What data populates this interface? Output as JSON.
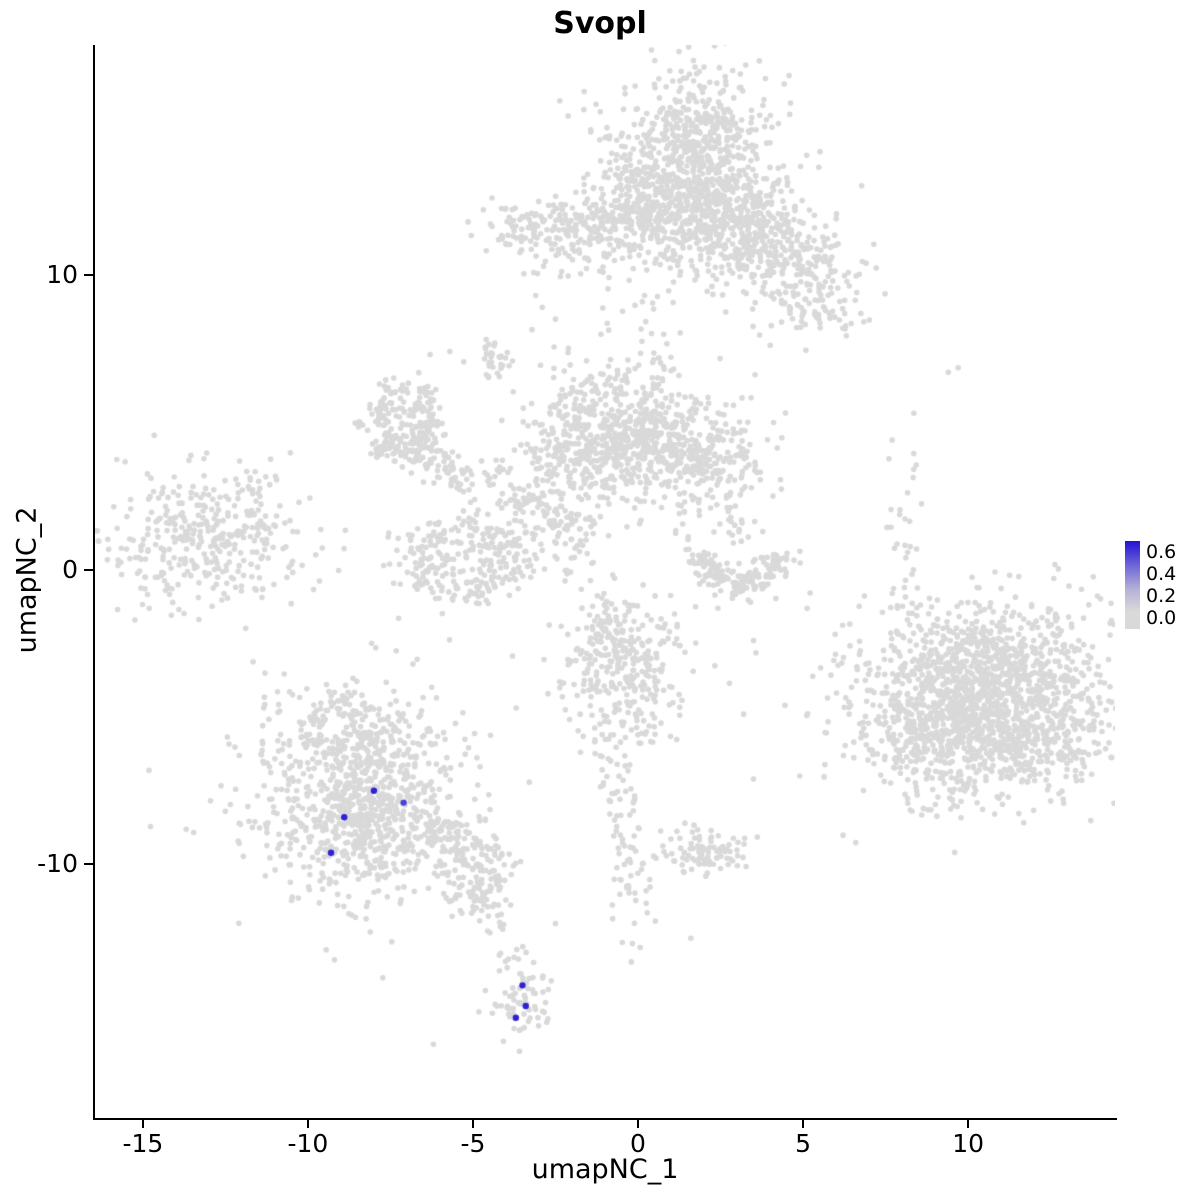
{
  "title": "Svopl",
  "axes": {
    "xlabel": "umapNC_1",
    "ylabel": "umapNC_2",
    "xticks": [
      -15,
      -10,
      -5,
      0,
      5,
      10
    ],
    "yticks": [
      -10,
      0,
      10
    ],
    "xlim": [
      -16.45,
      14.45
    ],
    "ylim": [
      -18.6,
      17.8
    ]
  },
  "legend": {
    "ticks": [
      "0.6",
      "0.4",
      "0.2",
      "0.0"
    ],
    "max_value": 0.65
  },
  "chart_data": {
    "type": "scatter",
    "title": "Svopl",
    "xlabel": "umapNC_1",
    "ylabel": "umapNC_2",
    "background": "#ffffff",
    "point_color_low": "#d9d9d9",
    "point_color_high": "#2312d6",
    "point_radius": 2.8,
    "highlight_radius": 3.2,
    "clusters": [
      {
        "x": 1.5,
        "y": 13.6,
        "sx": 1.25,
        "sy": 1.6,
        "n": 650
      },
      {
        "x": 2.7,
        "y": 12.1,
        "sx": 1.0,
        "sy": 1.0,
        "n": 260
      },
      {
        "x": 0.5,
        "y": 12.4,
        "sx": 0.85,
        "sy": 1.1,
        "n": 220
      },
      {
        "x": 1.9,
        "y": 15.1,
        "sx": 0.8,
        "sy": 0.5,
        "n": 90
      },
      {
        "x": 4.2,
        "y": 11.2,
        "sx": 1.05,
        "sy": 0.95,
        "n": 220
      },
      {
        "x": 5.3,
        "y": 9.5,
        "sx": 0.85,
        "sy": 0.85,
        "n": 150
      },
      {
        "x": -2.2,
        "y": 11.4,
        "sx": 1.3,
        "sy": 0.65,
        "n": 210
      },
      {
        "x": -0.7,
        "y": 11.9,
        "sx": 0.7,
        "sy": 0.5,
        "n": 60
      },
      {
        "x": 0.4,
        "y": 7.4,
        "sx": 0.3,
        "sy": 1.3,
        "n": 26
      },
      {
        "x": -0.9,
        "y": 4.9,
        "sx": 1.25,
        "sy": 1.45,
        "n": 430
      },
      {
        "x": -2.0,
        "y": 3.8,
        "sx": 0.8,
        "sy": 0.8,
        "n": 140
      },
      {
        "x": 1.9,
        "y": 3.9,
        "sx": 1.05,
        "sy": 0.95,
        "n": 290
      },
      {
        "x": 0.6,
        "y": 4.3,
        "sx": 0.8,
        "sy": 0.6,
        "n": 110
      },
      {
        "shape": "ring",
        "x": -7.1,
        "y": 4.9,
        "r": 0.85,
        "jit": 0.3,
        "ax": 1.0,
        "ay": 1.15,
        "n": 230
      },
      {
        "x": -5.8,
        "y": 3.5,
        "sx": 0.95,
        "sy": 0.3,
        "rot": -40,
        "n": 80
      },
      {
        "shape": "ring",
        "x": -5.2,
        "y": 0.4,
        "r": 1.05,
        "jit": 0.38,
        "ax": 1.35,
        "ay": 1.0,
        "n": 280
      },
      {
        "x": -3.2,
        "y": 2.3,
        "sx": 1.0,
        "sy": 0.35,
        "rot": -35,
        "n": 80
      },
      {
        "x": -2.0,
        "y": 1.2,
        "sx": 0.45,
        "sy": 0.8,
        "n": 45
      },
      {
        "x": -4.5,
        "y": 7.2,
        "sx": 0.35,
        "sy": 0.35,
        "n": 30
      },
      {
        "shape": "ring",
        "x": 3.1,
        "y": 0.2,
        "r": 0.95,
        "jit": 0.3,
        "ax": 1.15,
        "ay": 0.75,
        "arc": [
          150,
          390
        ],
        "n": 170
      },
      {
        "x": 2.9,
        "y": 1.5,
        "sx": 0.3,
        "sy": 0.5,
        "n": 18
      },
      {
        "x": -13.4,
        "y": 1.0,
        "sx": 1.55,
        "sy": 1.15,
        "n": 330
      },
      {
        "x": -11.7,
        "y": 1.9,
        "sx": 0.6,
        "sy": 0.7,
        "n": 45
      },
      {
        "x": 10.6,
        "y": -4.3,
        "sx": 2.0,
        "sy": 1.7,
        "n": 950
      },
      {
        "x": 9.3,
        "y": -5.4,
        "sx": 1.3,
        "sy": 1.2,
        "n": 420
      },
      {
        "x": 11.8,
        "y": -5.6,
        "sx": 1.3,
        "sy": 0.9,
        "n": 260
      },
      {
        "x": 10.2,
        "y": -2.9,
        "sx": 1.4,
        "sy": 0.8,
        "n": 220
      },
      {
        "x": 8.1,
        "y": 0.9,
        "sx": 0.25,
        "sy": 1.7,
        "n": 30
      },
      {
        "x": -0.4,
        "y": -3.6,
        "sx": 1.05,
        "sy": 1.25,
        "n": 300
      },
      {
        "x": -0.7,
        "y": -1.9,
        "sx": 0.45,
        "sy": 0.6,
        "n": 55
      },
      {
        "x": -0.5,
        "y": -8.3,
        "sx": 0.28,
        "sy": 1.7,
        "rot": 8,
        "n": 55
      },
      {
        "x": -0.1,
        "y": -11.2,
        "sx": 0.3,
        "sy": 0.9,
        "n": 26
      },
      {
        "x": 2.0,
        "y": -9.6,
        "sx": 0.65,
        "sy": 0.45,
        "n": 95
      },
      {
        "x": -8.5,
        "y": -7.6,
        "sx": 1.75,
        "sy": 1.85,
        "n": 680
      },
      {
        "x": -8.2,
        "y": -8.4,
        "sx": 0.95,
        "sy": 0.95,
        "n": 260
      },
      {
        "x": -8.7,
        "y": -5.5,
        "sx": 0.75,
        "sy": 0.7,
        "n": 130
      },
      {
        "x": -5.7,
        "y": -9.1,
        "sx": 1.05,
        "sy": 0.4,
        "rot": -35,
        "n": 120
      },
      {
        "x": -4.8,
        "y": -10.7,
        "sx": 0.5,
        "sy": 0.55,
        "n": 95
      },
      {
        "x": -4.2,
        "y": -12.3,
        "sx": 0.2,
        "sy": 0.8,
        "n": 14
      },
      {
        "x": -3.6,
        "y": -14.5,
        "sx": 0.4,
        "sy": 0.85,
        "n": 75
      }
    ],
    "sparse_points": [
      [
        -2.9,
        8.9
      ],
      [
        -2.5,
        8.5
      ],
      [
        -3.1,
        9.3
      ],
      [
        -7.4,
        6.5
      ],
      [
        -6.3,
        7.3
      ],
      [
        -5.7,
        7.4
      ],
      [
        0.2,
        9.3
      ],
      [
        9.4,
        6.7
      ],
      [
        9.7,
        6.85
      ],
      [
        7.7,
        4.4
      ],
      [
        3.5,
        -2.4
      ],
      [
        3.2,
        -4.9
      ],
      [
        3.5,
        -7.1
      ],
      [
        4.9,
        -7.0
      ],
      [
        -2.5,
        -12.0
      ],
      [
        1.6,
        -12.5
      ],
      [
        -6.2,
        -16.1
      ]
    ],
    "highlighted_points": [
      {
        "x": -8.0,
        "y": -7.5,
        "value": 0.6
      },
      {
        "x": -7.1,
        "y": -7.9,
        "value": 0.5
      },
      {
        "x": -8.9,
        "y": -8.4,
        "value": 0.6
      },
      {
        "x": -9.3,
        "y": -9.6,
        "value": 0.6
      },
      {
        "x": -3.5,
        "y": -14.1,
        "value": 0.6
      },
      {
        "x": -3.4,
        "y": -14.8,
        "value": 0.6
      },
      {
        "x": -3.7,
        "y": -15.2,
        "value": 0.6
      }
    ]
  }
}
